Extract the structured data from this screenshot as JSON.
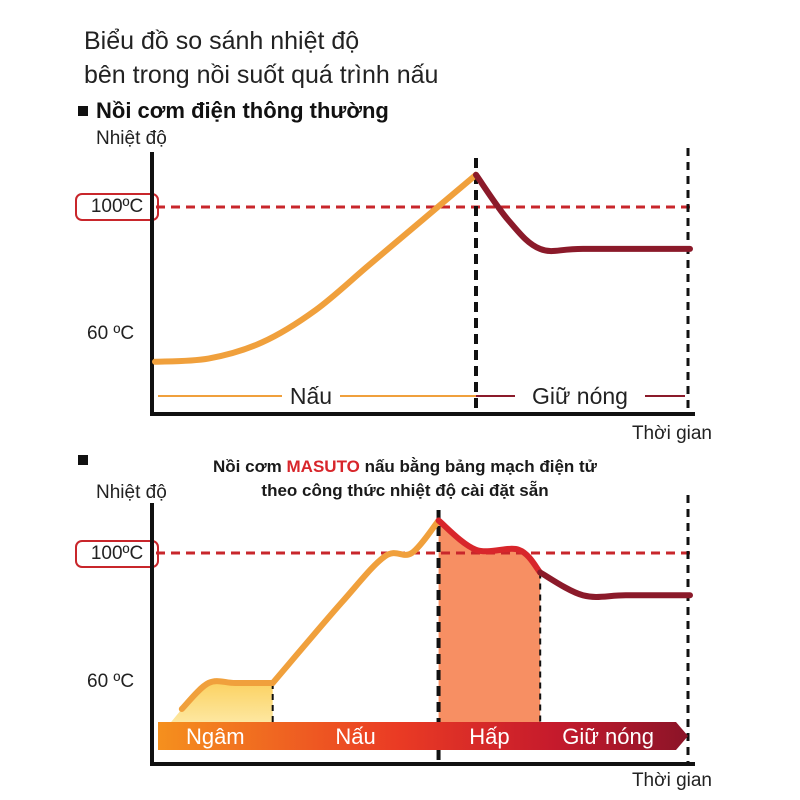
{
  "title_line1": "Biểu đồ so sánh nhiệt độ",
  "title_line2": "bên trong nồi suốt quá trình nấu",
  "chart_data": [
    {
      "type": "line",
      "title": "Nồi cơm điện thông thường",
      "ylabel": "Nhiệt độ",
      "xlabel": "Thời gian",
      "y_ticks": [
        "100ºC",
        "60 ºC"
      ],
      "reference_line": "100ºC",
      "phases": [
        "Nấu",
        "Giữ nóng"
      ],
      "series": [
        {
          "phase": "Nấu",
          "color": "#f0a03c",
          "x": [
            0,
            10,
            20,
            30,
            40,
            50,
            60
          ],
          "y": [
            52,
            53,
            58,
            68,
            82,
            96,
            110
          ]
        },
        {
          "phase": "Giữ nóng",
          "color": "#8b1a2a",
          "x": [
            60,
            66,
            72,
            80,
            100
          ],
          "y": [
            110,
            96,
            87,
            87,
            87
          ]
        }
      ],
      "colors": {
        "axis": "#111111",
        "reference": "#c8262b",
        "cook": "#f0a03c",
        "keep_warm": "#8b1a2a"
      }
    },
    {
      "type": "line",
      "title_part1": "Nồi cơm ",
      "title_brand": "MASUTO",
      "title_part2": " nấu bằng bảng mạch điện tử",
      "title_line2": "theo công thức nhiệt độ cài đặt sẵn",
      "ylabel": "Nhiệt độ",
      "xlabel": "Thời gian",
      "y_ticks": [
        "100ºC",
        "60 ºC"
      ],
      "reference_line": "100ºC",
      "phases": [
        "Ngâm",
        "Nấu",
        "Hấp",
        "Giữ nóng"
      ],
      "series": [
        {
          "phase": "Ngâm",
          "color": "#f0a03c",
          "x": [
            5,
            10,
            15,
            22
          ],
          "y": [
            52,
            60,
            60,
            60
          ]
        },
        {
          "phase": "Nấu",
          "color": "#f0a03c",
          "x": [
            22,
            35,
            43,
            48,
            53
          ],
          "y": [
            60,
            85,
            99,
            100,
            110
          ]
        },
        {
          "phase": "Hấp",
          "color": "#d8262b",
          "x": [
            53,
            60,
            68,
            72
          ],
          "y": [
            110,
            101,
            101,
            94
          ]
        },
        {
          "phase": "Giữ nóng",
          "color": "#8b1a2a",
          "x": [
            72,
            80,
            88,
            100
          ],
          "y": [
            94,
            87,
            87,
            87
          ]
        }
      ],
      "colors": {
        "axis": "#111111",
        "reference": "#c8262b",
        "soak": "#fbd160",
        "cook": "#f0a03c",
        "steam": "#f78f63",
        "keep_warm": "#8b1a2a"
      }
    }
  ]
}
